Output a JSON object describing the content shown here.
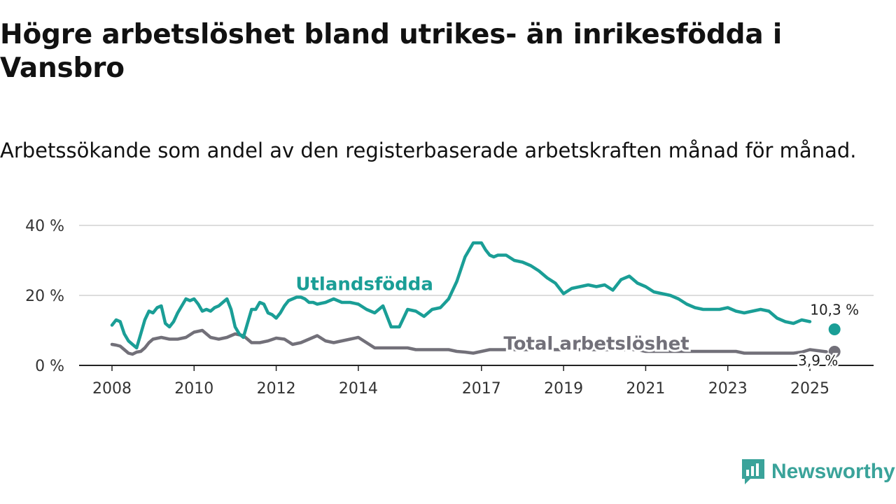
{
  "title": "Högre arbetslöshet bland utrikes- än inrikesfödda i Vansbro",
  "subtitle": "Arbetssökande som andel av den registerbaserade arbetskraften månad för månad.",
  "brand": {
    "name": "Newsworthy",
    "icon": "newsworthy-logo-icon",
    "color": "#3aa39a"
  },
  "chart_data": {
    "type": "line",
    "title": "Högre arbetslöshet bland utrikes- än inrikesfödda i Vansbro",
    "subtitle": "Arbetssökande som andel av den registerbaserade arbetskraften månad för månad.",
    "xlabel": "",
    "ylabel": "",
    "xlim": [
      2007.9,
      2025.8
    ],
    "ylim": [
      0,
      40
    ],
    "y_ticks": [
      0,
      20,
      40
    ],
    "y_tick_labels": [
      "0 %",
      "20 %",
      "40 %"
    ],
    "x_ticks": [
      2008,
      2010,
      2012,
      2014,
      2017,
      2019,
      2021,
      2023,
      2025
    ],
    "x_tick_labels": [
      "2008",
      "2010",
      "2012",
      "2014",
      "2017",
      "2019",
      "2021",
      "2023",
      "2025"
    ],
    "grid": true,
    "series": [
      {
        "name": "Utlandsfödda",
        "color": "#1a9e96",
        "last_value": 10.3,
        "last_value_label": "10,3 %",
        "x": [
          2008.0,
          2008.1,
          2008.2,
          2008.3,
          2008.4,
          2008.5,
          2008.6,
          2008.7,
          2008.8,
          2008.9,
          2009.0,
          2009.1,
          2009.2,
          2009.3,
          2009.4,
          2009.5,
          2009.6,
          2009.7,
          2009.8,
          2009.9,
          2010.0,
          2010.1,
          2010.2,
          2010.3,
          2010.4,
          2010.5,
          2010.6,
          2010.7,
          2010.8,
          2010.9,
          2011.0,
          2011.1,
          2011.2,
          2011.3,
          2011.4,
          2011.5,
          2011.6,
          2011.7,
          2011.8,
          2011.9,
          2012.0,
          2012.1,
          2012.2,
          2012.3,
          2012.4,
          2012.5,
          2012.6,
          2012.7,
          2012.8,
          2012.9,
          2013.0,
          2013.2,
          2013.4,
          2013.6,
          2013.8,
          2014.0,
          2014.2,
          2014.4,
          2014.6,
          2014.8,
          2015.0,
          2015.2,
          2015.4,
          2015.6,
          2015.8,
          2016.0,
          2016.2,
          2016.4,
          2016.6,
          2016.8,
          2017.0,
          2017.1,
          2017.2,
          2017.3,
          2017.4,
          2017.6,
          2017.8,
          2018.0,
          2018.2,
          2018.4,
          2018.6,
          2018.8,
          2019.0,
          2019.2,
          2019.4,
          2019.6,
          2019.8,
          2020.0,
          2020.2,
          2020.4,
          2020.6,
          2020.8,
          2021.0,
          2021.2,
          2021.4,
          2021.6,
          2021.8,
          2022.0,
          2022.2,
          2022.4,
          2022.6,
          2022.8,
          2023.0,
          2023.2,
          2023.4,
          2023.6,
          2023.8,
          2024.0,
          2024.2,
          2024.4,
          2024.6,
          2024.8,
          2025.0
        ],
        "values": [
          11.5,
          13.0,
          12.5,
          9.0,
          7.0,
          6.0,
          5.0,
          9.0,
          13.0,
          15.5,
          15.0,
          16.5,
          17.0,
          12.0,
          11.0,
          12.5,
          15.0,
          17.0,
          19.0,
          18.5,
          19.0,
          17.5,
          15.5,
          16.0,
          15.5,
          16.5,
          17.0,
          18.0,
          19.0,
          16.0,
          11.0,
          9.0,
          8.0,
          12.0,
          16.0,
          16.0,
          18.0,
          17.5,
          15.0,
          14.5,
          13.5,
          15.0,
          17.0,
          18.5,
          19.0,
          19.5,
          19.5,
          19.0,
          18.0,
          18.0,
          17.5,
          18.0,
          19.0,
          18.0,
          18.0,
          17.5,
          16.0,
          15.0,
          17.0,
          11.0,
          11.0,
          16.0,
          15.5,
          14.0,
          16.0,
          16.5,
          19.0,
          24.0,
          31.0,
          35.0,
          35.0,
          33.0,
          31.5,
          31.0,
          31.5,
          31.5,
          30.0,
          29.5,
          28.5,
          27.0,
          25.0,
          23.5,
          20.5,
          22.0,
          22.5,
          23.0,
          22.5,
          23.0,
          21.5,
          24.5,
          25.5,
          23.5,
          22.5,
          21.0,
          20.5,
          20.0,
          19.0,
          17.5,
          16.5,
          16.0,
          16.0,
          16.0,
          16.5,
          15.5,
          15.0,
          15.5,
          16.0,
          15.5,
          13.5,
          12.5,
          12.0,
          13.0,
          12.5
        ]
      },
      {
        "name": "Total arbetslöshet",
        "color": "#727079",
        "last_value": 3.9,
        "last_value_label": "3,9 %",
        "x": [
          2008.0,
          2008.1,
          2008.2,
          2008.3,
          2008.4,
          2008.5,
          2008.6,
          2008.7,
          2008.8,
          2008.9,
          2009.0,
          2009.2,
          2009.4,
          2009.6,
          2009.8,
          2010.0,
          2010.2,
          2010.4,
          2010.6,
          2010.8,
          2011.0,
          2011.2,
          2011.4,
          2011.6,
          2011.8,
          2012.0,
          2012.2,
          2012.4,
          2012.6,
          2012.8,
          2013.0,
          2013.2,
          2013.4,
          2013.6,
          2013.8,
          2014.0,
          2014.2,
          2014.4,
          2014.6,
          2014.8,
          2015.0,
          2015.2,
          2015.4,
          2015.6,
          2015.8,
          2016.0,
          2016.2,
          2016.4,
          2016.6,
          2016.8,
          2017.0,
          2017.2,
          2017.4,
          2017.6,
          2017.8,
          2018.0,
          2018.2,
          2018.4,
          2018.6,
          2018.8,
          2019.0,
          2019.2,
          2019.4,
          2019.6,
          2019.8,
          2020.0,
          2020.2,
          2020.4,
          2020.6,
          2020.8,
          2021.0,
          2021.2,
          2021.4,
          2021.6,
          2021.8,
          2022.0,
          2022.2,
          2022.4,
          2022.6,
          2022.8,
          2023.0,
          2023.2,
          2023.4,
          2023.6,
          2023.8,
          2024.0,
          2024.2,
          2024.4,
          2024.6,
          2024.8,
          2025.0,
          2025.2,
          2025.4
        ],
        "values": [
          6.0,
          5.8,
          5.5,
          4.5,
          3.5,
          3.2,
          3.8,
          4.0,
          5.0,
          6.5,
          7.5,
          8.0,
          7.5,
          7.5,
          8.0,
          9.5,
          10.0,
          8.0,
          7.5,
          8.0,
          9.0,
          8.5,
          6.5,
          6.5,
          7.0,
          7.8,
          7.5,
          6.0,
          6.5,
          7.5,
          8.5,
          7.0,
          6.5,
          7.0,
          7.5,
          8.0,
          6.5,
          5.0,
          5.0,
          5.0,
          5.0,
          5.0,
          4.5,
          4.5,
          4.5,
          4.5,
          4.5,
          4.0,
          3.8,
          3.5,
          4.0,
          4.5,
          4.5,
          4.5,
          4.5,
          4.5,
          4.5,
          4.5,
          4.5,
          4.5,
          4.5,
          4.5,
          4.5,
          4.5,
          4.5,
          4.5,
          4.5,
          4.5,
          4.5,
          4.5,
          4.0,
          4.0,
          4.0,
          4.0,
          4.0,
          4.0,
          4.0,
          4.0,
          4.0,
          4.0,
          4.0,
          4.0,
          3.5,
          3.5,
          3.5,
          3.5,
          3.5,
          3.5,
          3.5,
          3.8,
          4.5,
          4.2,
          3.9
        ]
      }
    ],
    "annotations": [
      {
        "text": "Utlandsfödda",
        "x": 2014.15,
        "y": 21.5,
        "series": "Utlandsfödda"
      },
      {
        "text": "Total arbetslöshet",
        "x": 2019.8,
        "y": 4.5,
        "series": "Total arbetslöshet"
      },
      {
        "text": "10,3 %",
        "x": 2025.6,
        "y": 14.5,
        "series": "Utlandsfödda"
      },
      {
        "text": "3,9 %",
        "x": 2025.2,
        "y": 0.0,
        "series": "Total arbetslöshet"
      }
    ],
    "end_markers": [
      {
        "series": "Utlandsfödda",
        "x": 2025.6,
        "y": 10.3
      },
      {
        "series": "Total arbetslöshet",
        "x": 2025.6,
        "y": 3.9
      }
    ]
  }
}
